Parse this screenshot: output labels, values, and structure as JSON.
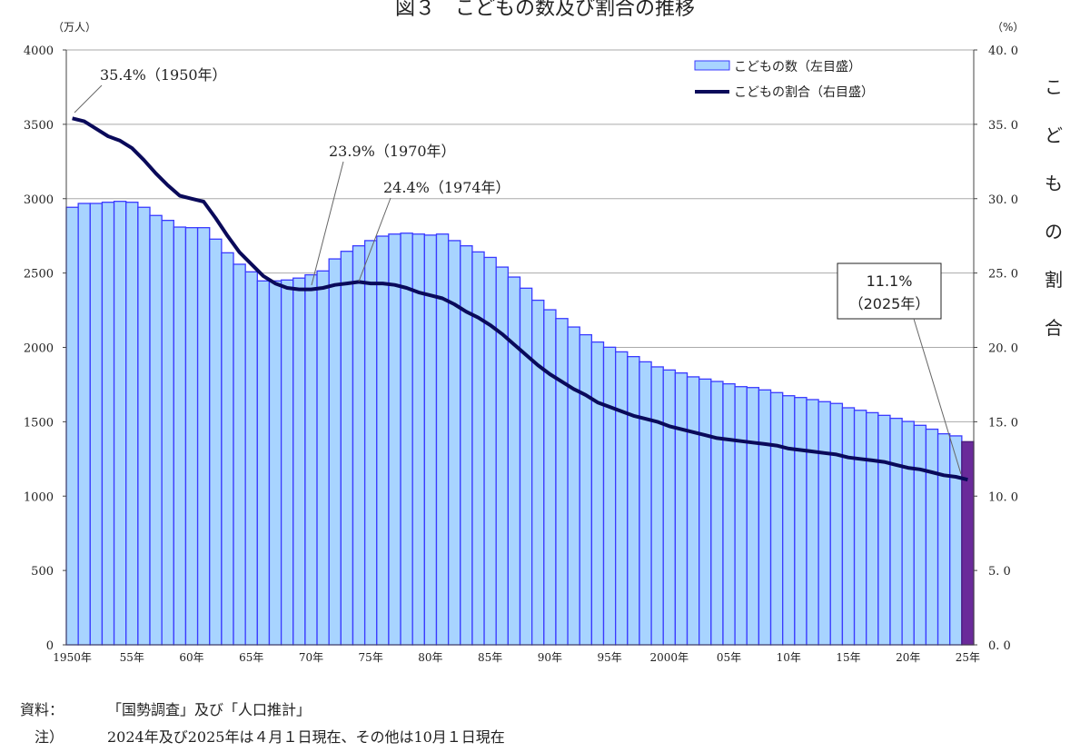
{
  "chart_data": {
    "type": "bar+line",
    "title": "図３　こどもの数及び割合の推移",
    "ylabel_left": "（万人）",
    "ylabel_right": "（%）",
    "right_axis_title": "こどもの割合",
    "ylim_left": [
      0,
      4000
    ],
    "ylim_right": [
      0,
      40
    ],
    "left_ticks": [
      "0",
      "500",
      "1000",
      "1500",
      "2000",
      "2500",
      "3000",
      "3500",
      "4000"
    ],
    "right_ticks": [
      "0.0",
      "5.0",
      "10.0",
      "15.0",
      "20.0",
      "25.0",
      "30.0",
      "35.0",
      "40.0"
    ],
    "x_tick_labels": [
      {
        "year": 1950,
        "label": "1950年"
      },
      {
        "year": 1955,
        "label": "55年"
      },
      {
        "year": 1960,
        "label": "60年"
      },
      {
        "year": 1965,
        "label": "65年"
      },
      {
        "year": 1970,
        "label": "70年"
      },
      {
        "year": 1975,
        "label": "75年"
      },
      {
        "year": 1980,
        "label": "80年"
      },
      {
        "year": 1985,
        "label": "85年"
      },
      {
        "year": 1990,
        "label": "90年"
      },
      {
        "year": 1995,
        "label": "95年"
      },
      {
        "year": 2000,
        "label": "2000年"
      },
      {
        "year": 2005,
        "label": "05年"
      },
      {
        "year": 2010,
        "label": "10年"
      },
      {
        "year": 2015,
        "label": "15年"
      },
      {
        "year": 2020,
        "label": "20年"
      },
      {
        "year": 2025,
        "label": "25年"
      }
    ],
    "grid": true,
    "legend_position": "top-right",
    "x": [
      1950,
      1951,
      1952,
      1953,
      1954,
      1955,
      1956,
      1957,
      1958,
      1959,
      1960,
      1961,
      1962,
      1963,
      1964,
      1965,
      1966,
      1967,
      1968,
      1969,
      1970,
      1971,
      1972,
      1973,
      1974,
      1975,
      1976,
      1977,
      1978,
      1979,
      1980,
      1981,
      1982,
      1983,
      1984,
      1985,
      1986,
      1987,
      1988,
      1989,
      1990,
      1991,
      1992,
      1993,
      1994,
      1995,
      1996,
      1997,
      1998,
      1999,
      2000,
      2001,
      2002,
      2003,
      2004,
      2005,
      2006,
      2007,
      2008,
      2009,
      2010,
      2011,
      2012,
      2013,
      2014,
      2015,
      2016,
      2017,
      2018,
      2019,
      2020,
      2021,
      2022,
      2023,
      2024,
      2025
    ],
    "series": [
      {
        "name": "こどもの数（左目盛）",
        "type": "bar",
        "axis": "left",
        "color": "#a8d4ff",
        "edge": "#3a3aff",
        "highlight_color": "#6a2a9a",
        "values": [
          2942,
          2968,
          2968,
          2976,
          2982,
          2976,
          2942,
          2887,
          2854,
          2809,
          2805,
          2805,
          2728,
          2636,
          2559,
          2508,
          2447,
          2447,
          2453,
          2466,
          2488,
          2514,
          2595,
          2646,
          2683,
          2718,
          2748,
          2762,
          2768,
          2762,
          2755,
          2762,
          2718,
          2683,
          2642,
          2605,
          2540,
          2473,
          2398,
          2317,
          2253,
          2194,
          2137,
          2085,
          2036,
          2001,
          1970,
          1938,
          1903,
          1869,
          1848,
          1828,
          1802,
          1787,
          1771,
          1755,
          1736,
          1730,
          1714,
          1696,
          1675,
          1663,
          1649,
          1635,
          1623,
          1594,
          1577,
          1561,
          1543,
          1523,
          1502,
          1476,
          1450,
          1419,
          1405,
          1366
        ]
      },
      {
        "name": "こどもの割合（右目盛）",
        "type": "line",
        "axis": "right",
        "color": "#0a0a5a",
        "values": [
          35.4,
          35.2,
          34.7,
          34.2,
          33.9,
          33.4,
          32.6,
          31.7,
          30.9,
          30.2,
          30.0,
          29.8,
          28.7,
          27.5,
          26.4,
          25.6,
          24.8,
          24.3,
          24.0,
          23.9,
          23.9,
          24.0,
          24.2,
          24.3,
          24.4,
          24.3,
          24.3,
          24.2,
          24.0,
          23.7,
          23.5,
          23.3,
          22.9,
          22.4,
          22.0,
          21.5,
          20.9,
          20.2,
          19.5,
          18.8,
          18.2,
          17.7,
          17.2,
          16.8,
          16.3,
          16.0,
          15.7,
          15.4,
          15.2,
          15.0,
          14.7,
          14.5,
          14.3,
          14.1,
          13.9,
          13.8,
          13.7,
          13.6,
          13.5,
          13.4,
          13.2,
          13.1,
          13.0,
          12.9,
          12.8,
          12.6,
          12.5,
          12.4,
          12.3,
          12.1,
          11.9,
          11.8,
          11.6,
          11.4,
          11.3,
          11.1
        ]
      }
    ],
    "annotations": [
      {
        "year": 1950,
        "text": "35.4%（1950年）"
      },
      {
        "year": 1970,
        "text": "23.9%（1970年）"
      },
      {
        "year": 1974,
        "text": "24.4%（1974年）"
      },
      {
        "year": 2025,
        "text_line1": "11.1%",
        "text_line2": "（2025年）"
      }
    ]
  },
  "notes": {
    "source_label": "資料：",
    "source_text": "「国勢調査」及び「人口推計」",
    "note_label": "注）",
    "note_text": "2024年及び2025年は４月１日現在、その他は10月１日現在"
  }
}
